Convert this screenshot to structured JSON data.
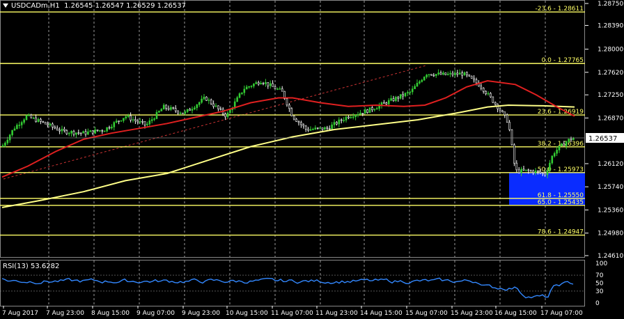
{
  "header": {
    "symbol": "USDCADm,H1",
    "ohlc": "1.26545 1.26547 1.26529 1.26537"
  },
  "rsi": {
    "label": "RSI(13) 53.6282",
    "levels": [
      "100",
      "70",
      "50",
      "30",
      "0"
    ]
  },
  "price_axis": [
    "1.28750",
    "1.28390",
    "1.28000",
    "1.27620",
    "1.27250",
    "1.26870",
    "1.26120",
    "1.25740",
    "1.25360",
    "1.24980",
    "1.24610"
  ],
  "current_price": "1.26537",
  "fib_levels": [
    {
      "label": "-23.6 - 1.28611",
      "price": 1.28611
    },
    {
      "label": "0.0 - 1.27765",
      "price": 1.27765
    },
    {
      "label": "23.6 - 1.26919",
      "price": 1.26919
    },
    {
      "label": "38.2 - 1.26396",
      "price": 1.26396
    },
    {
      "label": "50.0 - 1.25973",
      "price": 1.25973
    },
    {
      "label": "61.8 - 1.25550",
      "price": 1.2555
    },
    {
      "label": "65.0 - 1.25435",
      "price": 1.25435
    },
    {
      "label": "78.6 - 1.24947",
      "price": 1.24947
    }
  ],
  "time_axis": [
    "7 Aug 2017",
    "7 Aug 23:00",
    "8 Aug 15:00",
    "9 Aug 07:00",
    "9 Aug 23:00",
    "10 Aug 15:00",
    "11 Aug 07:00",
    "11 Aug 23:00",
    "14 Aug 15:00",
    "15 Aug 07:00",
    "15 Aug 23:00",
    "16 Aug 15:00",
    "17 Aug 07:00"
  ],
  "colors": {
    "background": "#000000",
    "fib": "#ffff66",
    "up": "#33cc33",
    "down": "#ffffff",
    "ma_fast": "#e02020",
    "ma_slow": "#ffff88",
    "rsi": "#3388ff",
    "zone": "#0a2cff",
    "grid": "#ffffff"
  }
}
